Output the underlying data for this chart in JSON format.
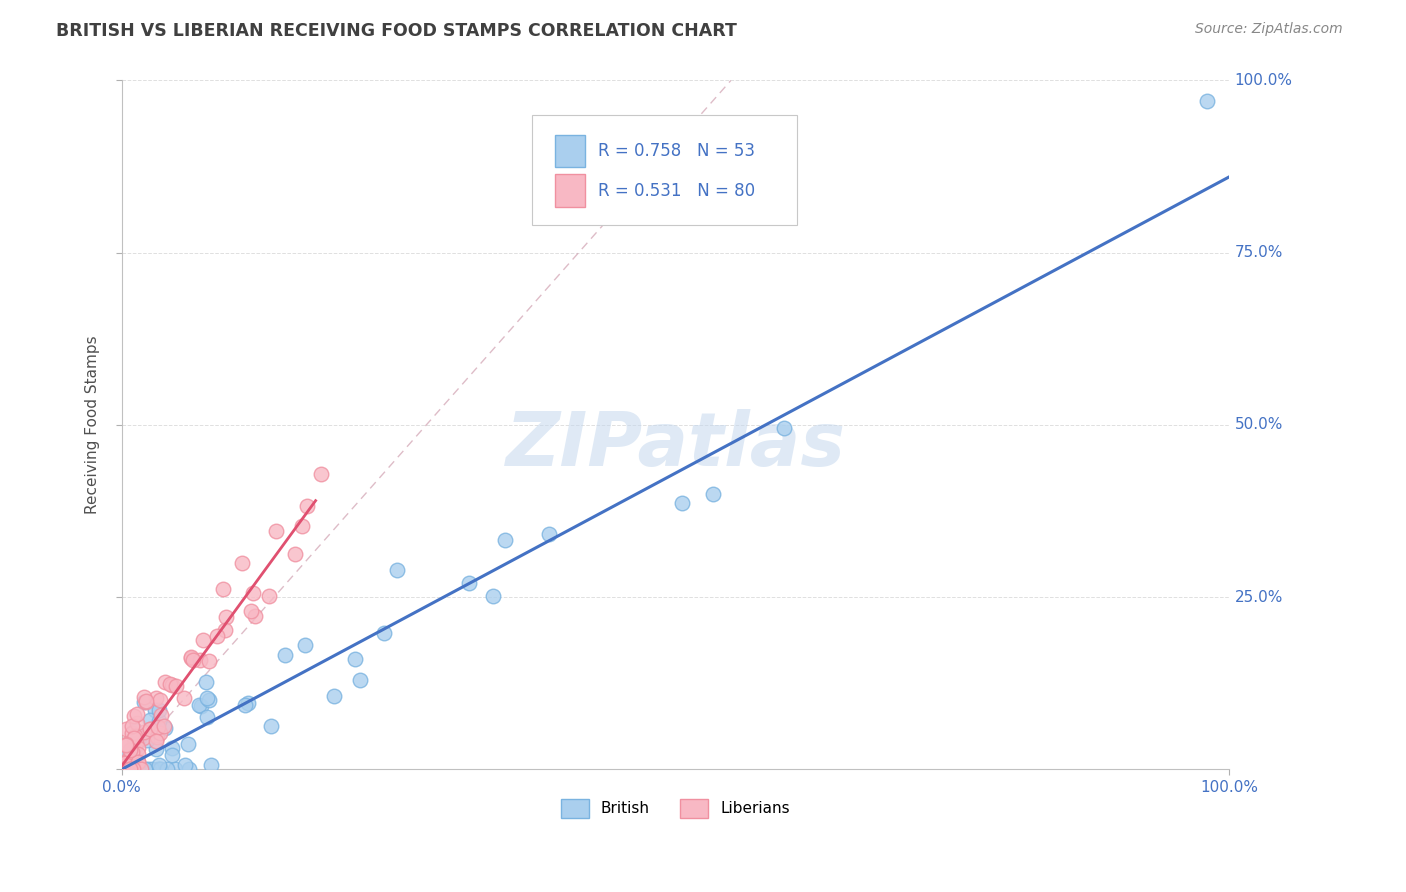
{
  "title": "BRITISH VS LIBERIAN RECEIVING FOOD STAMPS CORRELATION CHART",
  "source_text": "Source: ZipAtlas.com",
  "ylabel": "Receiving Food Stamps",
  "xlim": [
    0,
    1
  ],
  "ylim": [
    0,
    1
  ],
  "watermark": "ZIPatlas",
  "british_color": "#7ab3e0",
  "british_color_fill": "#aacfee",
  "liberian_color": "#f090a0",
  "liberian_color_fill": "#f8b8c4",
  "line_british_color": "#4472c4",
  "line_liberian_color": "#e05070",
  "accent_color": "#4472c4",
  "british_R": 0.758,
  "british_N": 53,
  "liberian_R": 0.531,
  "liberian_N": 80,
  "title_color": "#404040",
  "grid_color": "#d8d8d8",
  "background_color": "#ffffff"
}
